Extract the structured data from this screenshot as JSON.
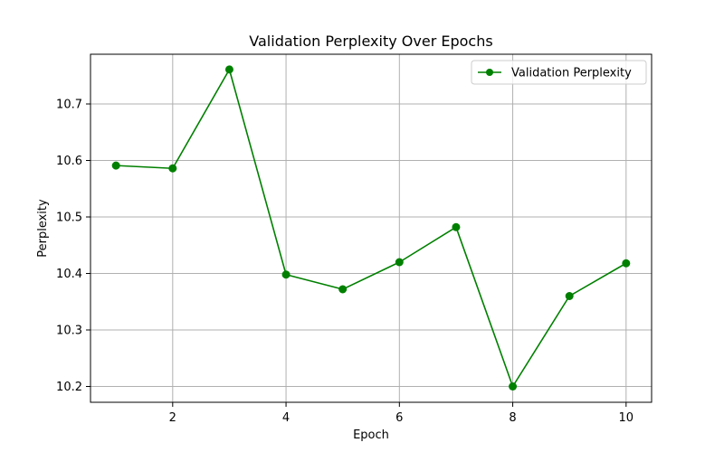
{
  "chart_data": {
    "type": "line",
    "title": "Validation Perplexity Over Epochs",
    "xlabel": "Epoch",
    "ylabel": "Perplexity",
    "xlim": [
      0.55,
      10.45
    ],
    "ylim": [
      10.172,
      10.788
    ],
    "xticks": [
      2,
      4,
      6,
      8,
      10
    ],
    "yticks": [
      10.2,
      10.3,
      10.4,
      10.5,
      10.6,
      10.7
    ],
    "ytick_labels": [
      "10.2",
      "10.3",
      "10.4",
      "10.5",
      "10.6",
      "10.7"
    ],
    "grid": true,
    "legend_position": "top-right",
    "series": [
      {
        "name": "Validation Perplexity",
        "color": "#008000",
        "marker": "circle",
        "x": [
          1,
          2,
          3,
          4,
          5,
          6,
          7,
          8,
          9,
          10
        ],
        "y": [
          10.591,
          10.586,
          10.761,
          10.398,
          10.372,
          10.42,
          10.482,
          10.2,
          10.36,
          10.418
        ]
      }
    ]
  }
}
